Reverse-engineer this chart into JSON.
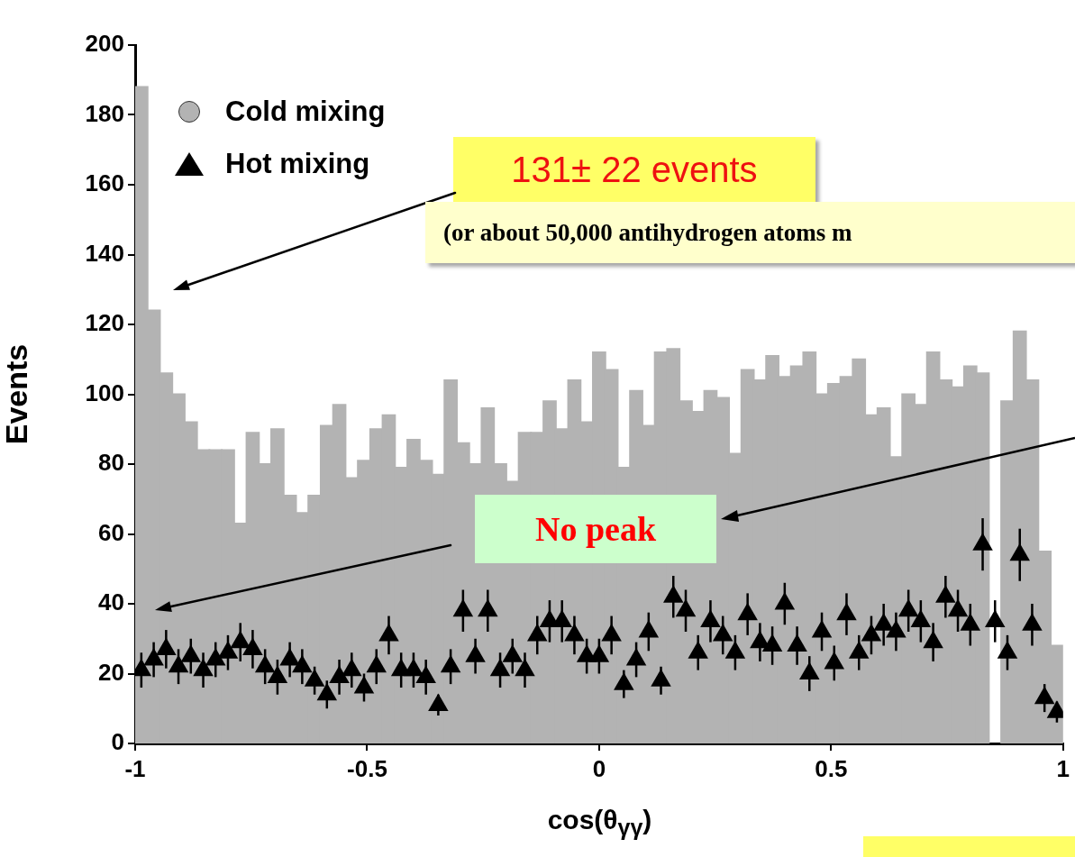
{
  "chart_data": {
    "type": "histogram",
    "xlabel": "cos(θ$_{γγ}$)",
    "ylabel": "Events",
    "xlim": [
      -1,
      1
    ],
    "xticks": [
      -1,
      -0.5,
      0,
      0.5,
      1
    ],
    "ylim": [
      0,
      200
    ],
    "yticks": [
      0,
      20,
      40,
      60,
      80,
      100,
      120,
      140,
      160,
      180,
      200
    ],
    "legend": "top left",
    "bins": [
      -1,
      -0.9733,
      -0.9467,
      -0.92,
      -0.8933,
      -0.8667,
      -0.84,
      -0.8133,
      -0.7867,
      -0.76,
      -0.7333,
      -0.7067,
      -0.68,
      -0.6533,
      -0.6267,
      -0.6,
      -0.5733,
      -0.5467,
      -0.52,
      -0.4933,
      -0.4667,
      -0.44,
      -0.4133,
      -0.3867,
      -0.36,
      -0.3333,
      -0.3067,
      -0.28,
      -0.2533,
      -0.2267,
      -0.2,
      -0.1733,
      -0.1467,
      -0.12,
      -0.0933,
      -0.0667,
      -0.04,
      -0.0133,
      0.0133,
      0.04,
      0.0667,
      0.0933,
      0.12,
      0.1467,
      0.1733,
      0.2,
      0.2267,
      0.2533,
      0.28,
      0.3067,
      0.3333,
      0.36,
      0.3867,
      0.4133,
      0.44,
      0.4667,
      0.4933,
      0.52,
      0.5467,
      0.5733,
      0.6,
      0.6267,
      0.6533,
      0.68,
      0.7067,
      0.7333,
      0.76,
      0.7867,
      0.8133,
      0.84,
      0.8667,
      0.8933,
      0.92,
      0.9467,
      0.9733,
      1
    ],
    "series": [
      {
        "name": "Cold mixing",
        "color": "#b3b3b3",
        "values": [
          188,
          124,
          106,
          100,
          92,
          84,
          84,
          84,
          63,
          89,
          80,
          90,
          71,
          66,
          71,
          91,
          97,
          76,
          81,
          90,
          94,
          79,
          87,
          81,
          77,
          104,
          86,
          80,
          96,
          80,
          75,
          89,
          89,
          98,
          90,
          104,
          92,
          112,
          107,
          79,
          101,
          91,
          112,
          113,
          98,
          95,
          101,
          99,
          83,
          107,
          104,
          111,
          105,
          108,
          112,
          100,
          103,
          105,
          110,
          94,
          96,
          82,
          100,
          97,
          112,
          104,
          102,
          108,
          106,
          null,
          98,
          118,
          104,
          55,
          28
        ]
      },
      {
        "name": "Hot mixing",
        "type": "scatter",
        "marker": "triangle",
        "color": "#000000",
        "x": [
          -0.9867,
          -0.96,
          -0.9333,
          -0.9067,
          -0.88,
          -0.8533,
          -0.8267,
          -0.8,
          -0.7733,
          -0.7467,
          -0.72,
          -0.6933,
          -0.6667,
          -0.64,
          -0.6133,
          -0.5867,
          -0.56,
          -0.5333,
          -0.5067,
          -0.48,
          -0.4533,
          -0.4267,
          -0.4,
          -0.3733,
          -0.3467,
          -0.32,
          -0.2933,
          -0.2667,
          -0.24,
          -0.2133,
          -0.1867,
          -0.16,
          -0.1333,
          -0.1067,
          -0.08,
          -0.0533,
          -0.0267,
          0,
          0.0267,
          0.0533,
          0.08,
          0.1067,
          0.1333,
          0.16,
          0.1867,
          0.2133,
          0.24,
          0.2667,
          0.2933,
          0.32,
          0.3467,
          0.3733,
          0.4,
          0.4267,
          0.4533,
          0.48,
          0.5067,
          0.5333,
          0.56,
          0.5867,
          0.6133,
          0.64,
          0.6667,
          0.6933,
          0.72,
          0.7467,
          0.7733,
          0.8,
          0.8267,
          0.8533,
          0.88,
          0.9067,
          0.9333,
          0.96,
          0.9867
        ],
        "values": [
          21,
          24,
          27,
          22,
          25,
          21,
          24,
          26,
          29,
          27,
          22,
          19,
          24,
          22,
          18,
          14,
          19,
          21,
          16,
          22,
          31,
          21,
          21,
          19,
          11,
          22,
          38,
          25,
          38,
          21,
          25,
          21,
          31,
          35,
          35,
          31,
          25,
          25,
          31,
          17,
          24,
          32,
          18,
          42,
          38,
          26,
          35,
          31,
          26,
          37,
          29,
          28,
          40,
          28,
          20,
          32,
          23,
          37,
          26,
          31,
          34,
          32,
          38,
          35,
          29,
          42,
          38,
          34,
          57,
          35,
          26,
          54,
          34,
          13,
          9
        ],
        "errors": [
          5,
          5,
          5.5,
          5,
          5,
          5,
          5,
          5,
          5.5,
          5.5,
          5,
          5,
          5,
          5,
          4,
          4,
          5,
          5,
          4,
          5,
          5.5,
          5,
          5,
          5,
          3,
          5,
          6,
          5,
          6,
          5,
          5,
          5,
          5.5,
          6,
          6,
          5.5,
          5,
          5,
          5.5,
          4,
          5,
          5.5,
          4,
          6,
          6,
          5,
          6,
          5.5,
          5,
          6,
          5.5,
          5.5,
          6,
          5.5,
          5,
          5.5,
          5,
          6,
          5,
          5.5,
          6,
          5.5,
          6,
          6,
          5.5,
          6,
          6,
          6,
          7.5,
          6,
          5,
          7.5,
          6,
          4,
          3
        ]
      }
    ],
    "annotations": [
      "131± 22 events",
      "(or about 50,000 antihydrogen atoms m",
      "No peak"
    ]
  }
}
